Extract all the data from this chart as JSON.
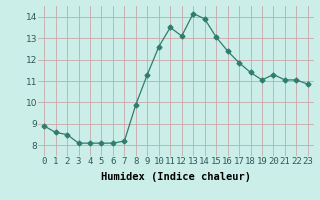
{
  "x": [
    0,
    1,
    2,
    3,
    4,
    5,
    6,
    7,
    8,
    9,
    10,
    11,
    12,
    13,
    14,
    15,
    16,
    17,
    18,
    19,
    20,
    21,
    22,
    23
  ],
  "y": [
    8.9,
    8.6,
    8.5,
    8.1,
    8.1,
    8.1,
    8.1,
    8.2,
    9.9,
    11.3,
    12.6,
    13.5,
    13.1,
    14.15,
    13.9,
    13.05,
    12.4,
    11.85,
    11.4,
    11.05,
    11.3,
    11.05,
    11.05,
    10.85
  ],
  "line_color": "#2e7d6e",
  "marker": "D",
  "marker_size": 2.5,
  "background_color": "#cceee8",
  "grid_color_major": "#c8a8a8",
  "grid_color_minor": "#c8a8a8",
  "xlabel": "Humidex (Indice chaleur)",
  "xlim": [
    -0.5,
    23.5
  ],
  "ylim": [
    7.5,
    14.5
  ],
  "yticks": [
    8,
    9,
    10,
    11,
    12,
    13,
    14
  ],
  "xticks": [
    0,
    1,
    2,
    3,
    4,
    5,
    6,
    7,
    8,
    9,
    10,
    11,
    12,
    13,
    14,
    15,
    16,
    17,
    18,
    19,
    20,
    21,
    22,
    23
  ],
  "xtick_labels": [
    "0",
    "1",
    "2",
    "3",
    "4",
    "5",
    "6",
    "7",
    "8",
    "9",
    "10",
    "11",
    "12",
    "13",
    "14",
    "15",
    "16",
    "17",
    "18",
    "19",
    "20",
    "21",
    "22",
    "23"
  ],
  "xlabel_fontsize": 7.5,
  "tick_fontsize": 6.5
}
